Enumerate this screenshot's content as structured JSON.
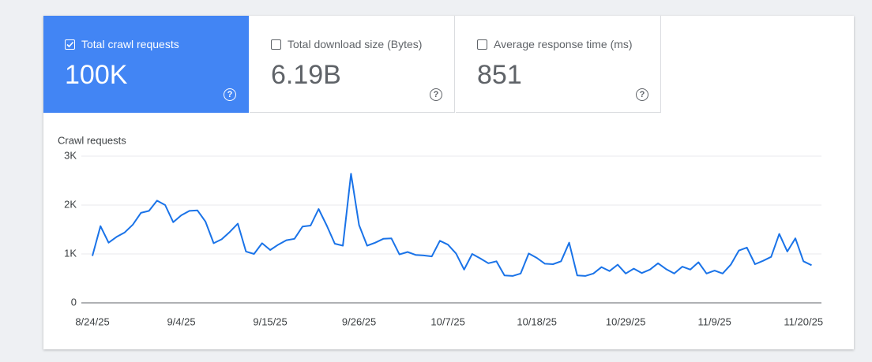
{
  "cards": [
    {
      "label": "Total crawl requests",
      "value": "100K",
      "selected": true
    },
    {
      "label": "Total download size (Bytes)",
      "value": "6.19B",
      "selected": false
    },
    {
      "label": "Average response time (ms)",
      "value": "851",
      "selected": false
    }
  ],
  "chart_data": {
    "type": "line",
    "y_label": "Crawl requests",
    "color": "#1a73e8",
    "categories": [
      "8/24/25",
      null,
      null,
      null,
      null,
      null,
      null,
      null,
      null,
      null,
      null,
      "9/4/25",
      null,
      null,
      null,
      null,
      null,
      null,
      null,
      null,
      null,
      null,
      "9/15/25",
      null,
      null,
      null,
      null,
      null,
      null,
      null,
      null,
      null,
      null,
      "9/26/25",
      null,
      null,
      null,
      null,
      null,
      null,
      null,
      null,
      null,
      null,
      "10/7/25",
      null,
      null,
      null,
      null,
      null,
      null,
      null,
      null,
      null,
      null,
      "10/18/25",
      null,
      null,
      null,
      null,
      null,
      null,
      null,
      null,
      null,
      null,
      "10/29/25",
      null,
      null,
      null,
      null,
      null,
      null,
      null,
      null,
      null,
      null,
      "11/9/25",
      null,
      null,
      null,
      null,
      null,
      null,
      null,
      null,
      null,
      null,
      "11/20/25",
      null
    ],
    "values": [
      960,
      1570,
      1230,
      1350,
      1440,
      1600,
      1840,
      1880,
      2090,
      2000,
      1650,
      1790,
      1880,
      1890,
      1660,
      1220,
      1300,
      1450,
      1620,
      1050,
      1000,
      1220,
      1080,
      1190,
      1280,
      1310,
      1560,
      1580,
      1920,
      1580,
      1210,
      1170,
      2640,
      1590,
      1170,
      1230,
      1310,
      1320,
      990,
      1040,
      980,
      970,
      950,
      1270,
      1190,
      1010,
      680,
      1000,
      910,
      810,
      850,
      560,
      550,
      600,
      1010,
      920,
      800,
      790,
      850,
      1230,
      560,
      550,
      600,
      730,
      650,
      780,
      600,
      700,
      610,
      680,
      810,
      690,
      600,
      740,
      680,
      830,
      600,
      660,
      600,
      780,
      1070,
      1130,
      790,
      860,
      940,
      1410,
      1050,
      1320,
      850,
      770
    ],
    "ylim": [
      0,
      3000
    ],
    "yticks": [
      0,
      {
        "value": 1000,
        "label": "1K"
      },
      {
        "value": 2000,
        "label": "2K"
      },
      {
        "value": 3000,
        "label": "3K"
      }
    ],
    "grid": true
  }
}
